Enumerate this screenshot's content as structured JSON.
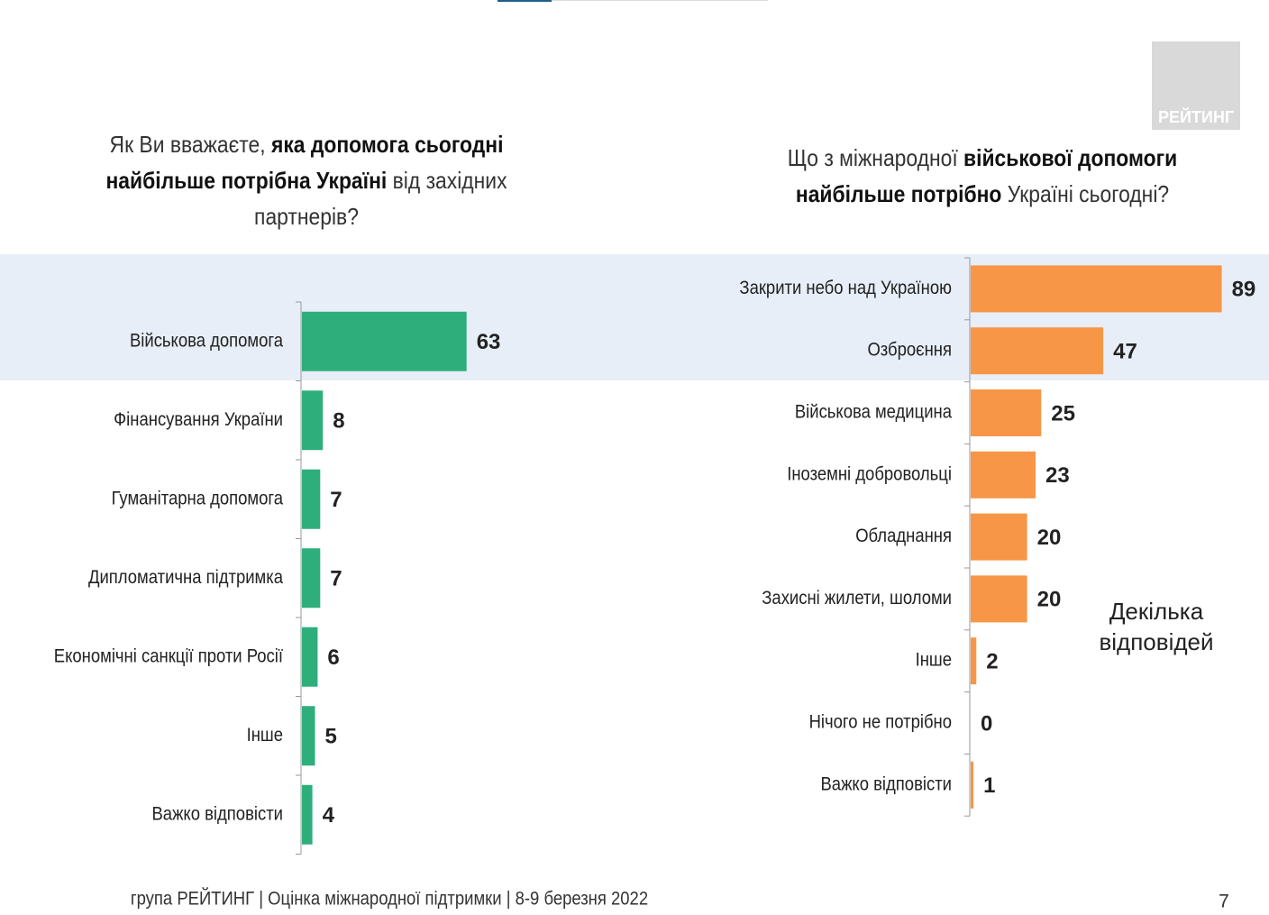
{
  "logo": "РЕЙТИНГ",
  "footer": "група РЕЙТИНГ | Оцінка міжнародної підтримки | 8-9 березня 2022",
  "page_number": "7",
  "chart_data": [
    {
      "type": "bar",
      "orientation": "horizontal",
      "title": [
        "Як Ви вважаєте, ",
        "яка допомога сьогодні найбільше потрібна Україні",
        " від західних партнерів?"
      ],
      "categories": [
        "Військова допомога",
        "Фінансування України",
        "Гуманітарна допомога",
        "Дипломатична підтримка",
        "Економічні санкції проти Росії",
        "Інше",
        "Важко відповісти"
      ],
      "values": [
        63,
        8,
        7,
        7,
        6,
        5,
        4
      ],
      "color": "#2eae7b"
    },
    {
      "type": "bar",
      "orientation": "horizontal",
      "title": [
        "Що з міжнародної ",
        "військової допомоги найбільше потрібно",
        " Україні сьогодні?"
      ],
      "categories": [
        "Закрити небо над Україною",
        "Озброєння",
        "Військова медицина",
        "Іноземні добровольці",
        "Обладнання",
        "Захисні жилети, шоломи",
        "Інше",
        "Нічого не потрібно",
        "Важко відповісти"
      ],
      "values": [
        89,
        47,
        25,
        23,
        20,
        20,
        2,
        0,
        1
      ],
      "color": "#f79646",
      "annotation": "Декілька відповідей"
    }
  ]
}
